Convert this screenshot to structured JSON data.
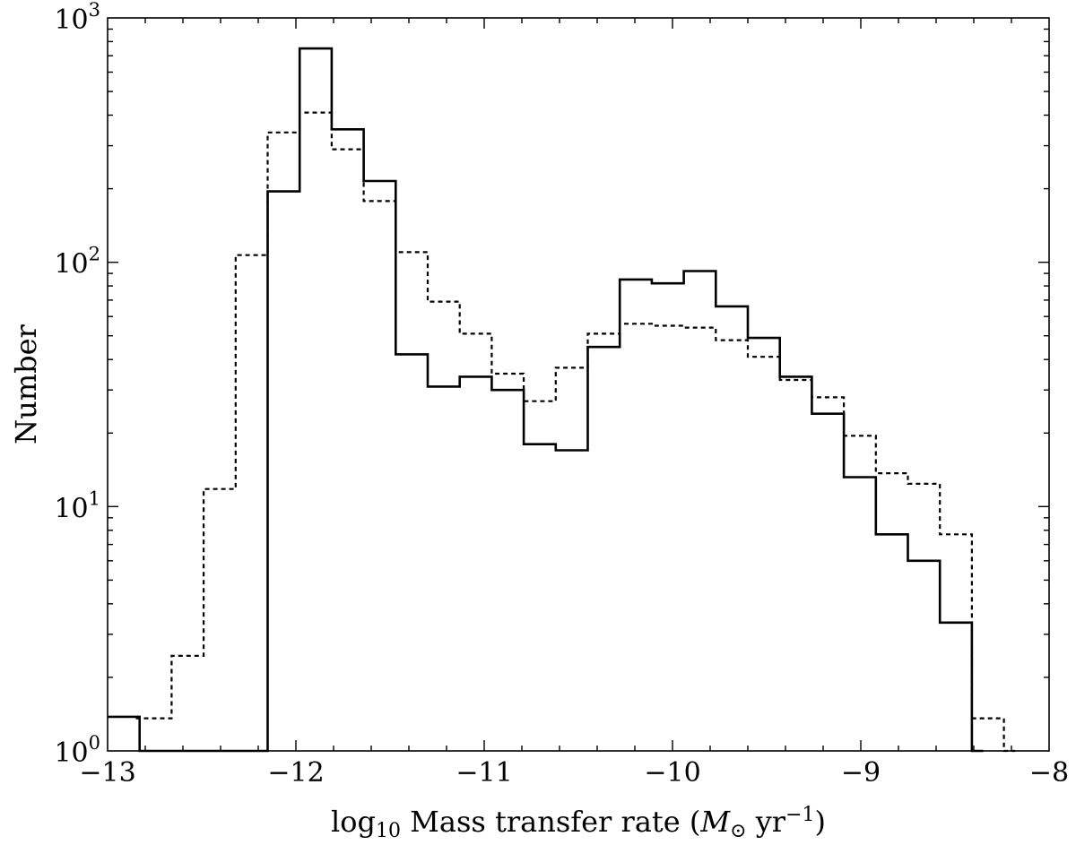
{
  "chart_data": {
    "type": "step-histogram",
    "xlabel_parts": {
      "prefix": "log",
      "subscript": "10",
      "text": " Mass transfer rate (",
      "symbol": "M",
      "symbol_subscript": "⊙",
      "unit": " yr",
      "exponent": "−1",
      "suffix": ")"
    },
    "ylabel": "Number",
    "xlim": [
      -13,
      -8
    ],
    "ylim": [
      1,
      1000
    ],
    "yscale": "log",
    "grid": false,
    "x_ticks": [
      {
        "value": -13,
        "label": "−13"
      },
      {
        "value": -12,
        "label": "−12"
      },
      {
        "value": -11,
        "label": "−11"
      },
      {
        "value": -10,
        "label": "−10"
      },
      {
        "value": -9,
        "label": "−9"
      },
      {
        "value": -8,
        "label": "−8"
      }
    ],
    "y_ticks": [
      {
        "value": 1,
        "base": "10",
        "exp": "0"
      },
      {
        "value": 10,
        "base": "10",
        "exp": "1"
      },
      {
        "value": 100,
        "base": "10",
        "exp": "2"
      },
      {
        "value": 1000,
        "base": "10",
        "exp": "3"
      }
    ],
    "series": [
      {
        "style": "solid",
        "color": "#000000",
        "edges": [
          -13.0,
          -12.83,
          -12.15,
          -11.98,
          -11.81,
          -11.64,
          -11.47,
          -11.3,
          -11.13,
          -10.96,
          -10.79,
          -10.62,
          -10.45,
          -10.28,
          -10.11,
          -9.94,
          -9.77,
          -9.6,
          -9.43,
          -9.26,
          -9.09,
          -8.92,
          -8.75,
          -8.58,
          -8.41,
          -8.35
        ],
        "values": [
          1.38,
          1.0,
          195,
          750,
          350,
          215,
          42,
          31,
          34,
          30,
          18,
          17,
          45,
          85,
          82,
          92,
          66,
          49,
          34,
          24,
          13.2,
          7.7,
          6.0,
          3.35,
          1.0
        ]
      },
      {
        "style": "dashed",
        "color": "#000000",
        "edges": [
          -12.85,
          -12.66,
          -12.49,
          -12.32,
          -12.15,
          -11.98,
          -11.81,
          -11.64,
          -11.47,
          -11.3,
          -11.13,
          -10.96,
          -10.79,
          -10.62,
          -10.45,
          -10.28,
          -10.11,
          -9.94,
          -9.77,
          -9.6,
          -9.43,
          -9.26,
          -9.09,
          -8.92,
          -8.75,
          -8.58,
          -8.41,
          -8.24,
          -8.18
        ],
        "values": [
          1.36,
          2.45,
          11.8,
          107,
          340,
          410,
          290,
          178,
          110,
          69,
          51,
          35,
          27,
          37,
          51,
          56,
          55,
          54,
          48,
          41,
          33,
          28,
          19.5,
          13.7,
          12.4,
          7.7,
          1.36,
          1.0
        ]
      }
    ]
  }
}
